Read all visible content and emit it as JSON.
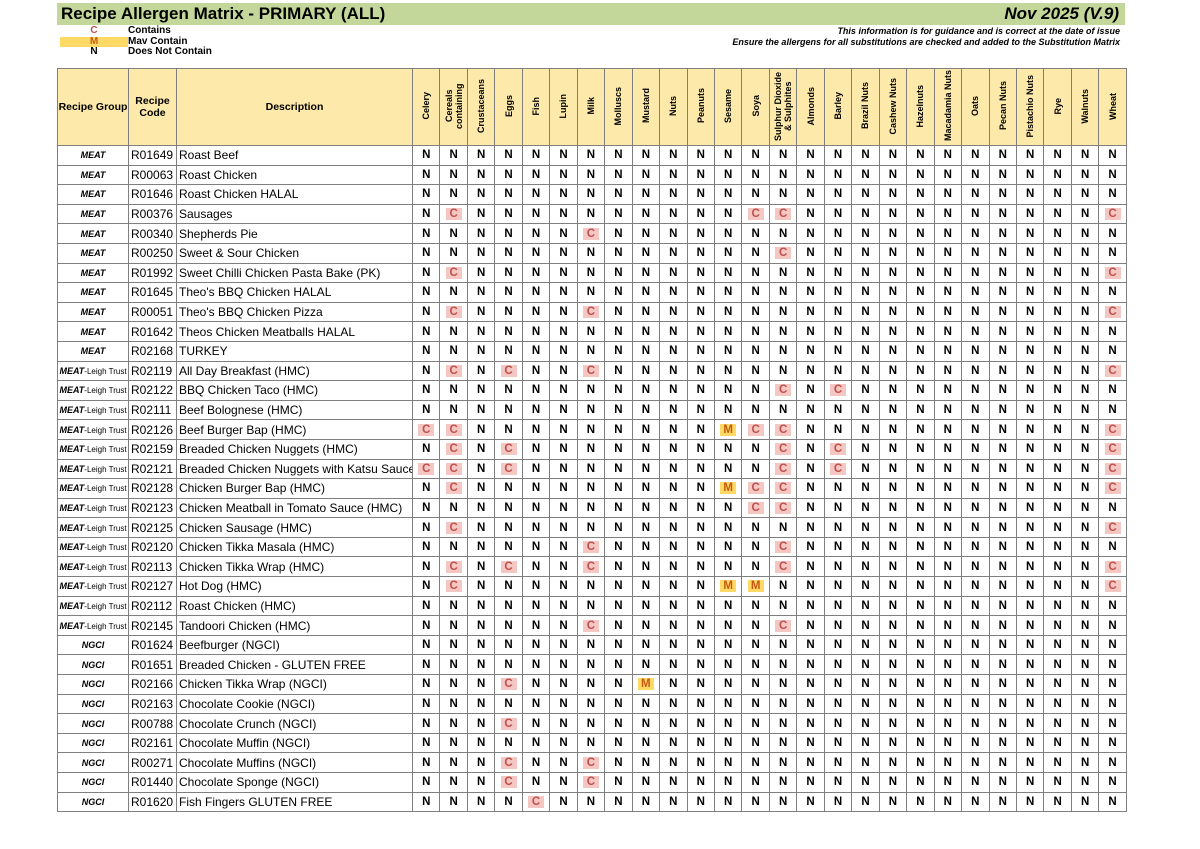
{
  "header": {
    "title": "Recipe Allergen Matrix - PRIMARY (ALL)",
    "date": "Nov 2025 (V.9)"
  },
  "legend": [
    {
      "code": "C",
      "label": "Contains"
    },
    {
      "code": "M",
      "label": "Mav Contain"
    },
    {
      "code": "N",
      "label": "Does Not Contain"
    }
  ],
  "notes": [
    "This information is for guidance and is correct at the date of issue",
    "Ensure the allergens for all substitutions are checked and added to the Substitution Matrix"
  ],
  "table": {
    "columns": [
      "Recipe Group",
      "Recipe Code",
      "Description"
    ],
    "allergens": [
      "Celery",
      "Cereals containing",
      "Crustaceans",
      "Eggs",
      "Fish",
      "Lupin",
      "Milk",
      "Molluscs",
      "Mustard",
      "Nuts",
      "Peanuts",
      "Sesame",
      "Soya",
      "Sulphur Dioxide & Sulphites",
      "Almonds",
      "Barley",
      "Brazil Nuts",
      "Cashew Nuts",
      "Hazelnuts",
      "Macadamia Nuts",
      "Oats",
      "Pecan Nuts",
      "Pistachio Nuts",
      "Rye",
      "Walnuts",
      "Wheat"
    ],
    "rows": [
      {
        "group": "MEAT",
        "code": "R01649",
        "description": "Roast Beef",
        "values": [
          "N",
          "N",
          "N",
          "N",
          "N",
          "N",
          "N",
          "N",
          "N",
          "N",
          "N",
          "N",
          "N",
          "N",
          "N",
          "N",
          "N",
          "N",
          "N",
          "N",
          "N",
          "N",
          "N",
          "N",
          "N",
          "N"
        ]
      },
      {
        "group": "MEAT",
        "code": "R00063",
        "description": "Roast Chicken",
        "values": [
          "N",
          "N",
          "N",
          "N",
          "N",
          "N",
          "N",
          "N",
          "N",
          "N",
          "N",
          "N",
          "N",
          "N",
          "N",
          "N",
          "N",
          "N",
          "N",
          "N",
          "N",
          "N",
          "N",
          "N",
          "N",
          "N"
        ]
      },
      {
        "group": "MEAT",
        "code": "R01646",
        "description": "Roast Chicken HALAL",
        "values": [
          "N",
          "N",
          "N",
          "N",
          "N",
          "N",
          "N",
          "N",
          "N",
          "N",
          "N",
          "N",
          "N",
          "N",
          "N",
          "N",
          "N",
          "N",
          "N",
          "N",
          "N",
          "N",
          "N",
          "N",
          "N",
          "N"
        ]
      },
      {
        "group": "MEAT",
        "code": "R00376",
        "description": "Sausages",
        "values": [
          "N",
          "C",
          "N",
          "N",
          "N",
          "N",
          "N",
          "N",
          "N",
          "N",
          "N",
          "N",
          "C",
          "C",
          "N",
          "N",
          "N",
          "N",
          "N",
          "N",
          "N",
          "N",
          "N",
          "N",
          "N",
          "C"
        ]
      },
      {
        "group": "MEAT",
        "code": "R00340",
        "description": "Shepherds Pie",
        "values": [
          "N",
          "N",
          "N",
          "N",
          "N",
          "N",
          "C",
          "N",
          "N",
          "N",
          "N",
          "N",
          "N",
          "N",
          "N",
          "N",
          "N",
          "N",
          "N",
          "N",
          "N",
          "N",
          "N",
          "N",
          "N",
          "N"
        ]
      },
      {
        "group": "MEAT",
        "code": "R00250",
        "description": "Sweet & Sour Chicken",
        "values": [
          "N",
          "N",
          "N",
          "N",
          "N",
          "N",
          "N",
          "N",
          "N",
          "N",
          "N",
          "N",
          "N",
          "C",
          "N",
          "N",
          "N",
          "N",
          "N",
          "N",
          "N",
          "N",
          "N",
          "N",
          "N",
          "N"
        ]
      },
      {
        "group": "MEAT",
        "code": "R01992",
        "description": "Sweet Chilli Chicken Pasta Bake (PK)",
        "values": [
          "N",
          "C",
          "N",
          "N",
          "N",
          "N",
          "N",
          "N",
          "N",
          "N",
          "N",
          "N",
          "N",
          "N",
          "N",
          "N",
          "N",
          "N",
          "N",
          "N",
          "N",
          "N",
          "N",
          "N",
          "N",
          "C"
        ]
      },
      {
        "group": "MEAT",
        "code": "R01645",
        "description": "Theo's BBQ Chicken HALAL",
        "values": [
          "N",
          "N",
          "N",
          "N",
          "N",
          "N",
          "N",
          "N",
          "N",
          "N",
          "N",
          "N",
          "N",
          "N",
          "N",
          "N",
          "N",
          "N",
          "N",
          "N",
          "N",
          "N",
          "N",
          "N",
          "N",
          "N"
        ]
      },
      {
        "group": "MEAT",
        "code": "R00051",
        "description": "Theo's BBQ Chicken Pizza",
        "values": [
          "N",
          "C",
          "N",
          "N",
          "N",
          "N",
          "C",
          "N",
          "N",
          "N",
          "N",
          "N",
          "N",
          "N",
          "N",
          "N",
          "N",
          "N",
          "N",
          "N",
          "N",
          "N",
          "N",
          "N",
          "N",
          "C"
        ]
      },
      {
        "group": "MEAT",
        "code": "R01642",
        "description": "Theos Chicken Meatballs HALAL",
        "values": [
          "N",
          "N",
          "N",
          "N",
          "N",
          "N",
          "N",
          "N",
          "N",
          "N",
          "N",
          "N",
          "N",
          "N",
          "N",
          "N",
          "N",
          "N",
          "N",
          "N",
          "N",
          "N",
          "N",
          "N",
          "N",
          "N"
        ]
      },
      {
        "group": "MEAT",
        "code": "R02168",
        "description": "TURKEY",
        "values": [
          "N",
          "N",
          "N",
          "N",
          "N",
          "N",
          "N",
          "N",
          "N",
          "N",
          "N",
          "N",
          "N",
          "N",
          "N",
          "N",
          "N",
          "N",
          "N",
          "N",
          "N",
          "N",
          "N",
          "N",
          "N",
          "N"
        ]
      },
      {
        "group": "MEAT",
        "sub": "-Leigh Trust",
        "code": "R02119",
        "description": "All Day Breakfast (HMC)",
        "values": [
          "N",
          "C",
          "N",
          "C",
          "N",
          "N",
          "C",
          "N",
          "N",
          "N",
          "N",
          "N",
          "N",
          "N",
          "N",
          "N",
          "N",
          "N",
          "N",
          "N",
          "N",
          "N",
          "N",
          "N",
          "N",
          "C"
        ]
      },
      {
        "group": "MEAT",
        "sub": "-Leigh Trust",
        "code": "R02122",
        "description": "BBQ Chicken Taco (HMC)",
        "values": [
          "N",
          "N",
          "N",
          "N",
          "N",
          "N",
          "N",
          "N",
          "N",
          "N",
          "N",
          "N",
          "N",
          "C",
          "N",
          "C",
          "N",
          "N",
          "N",
          "N",
          "N",
          "N",
          "N",
          "N",
          "N",
          "N"
        ]
      },
      {
        "group": "MEAT",
        "sub": "-Leigh Trust",
        "code": "R02111",
        "description": "Beef Bolognese (HMC)",
        "values": [
          "N",
          "N",
          "N",
          "N",
          "N",
          "N",
          "N",
          "N",
          "N",
          "N",
          "N",
          "N",
          "N",
          "N",
          "N",
          "N",
          "N",
          "N",
          "N",
          "N",
          "N",
          "N",
          "N",
          "N",
          "N",
          "N"
        ]
      },
      {
        "group": "MEAT",
        "sub": "-Leigh Trust",
        "code": "R02126",
        "description": "Beef Burger Bap (HMC)",
        "values": [
          "C",
          "C",
          "N",
          "N",
          "N",
          "N",
          "N",
          "N",
          "N",
          "N",
          "N",
          "M",
          "C",
          "C",
          "N",
          "N",
          "N",
          "N",
          "N",
          "N",
          "N",
          "N",
          "N",
          "N",
          "N",
          "C"
        ]
      },
      {
        "group": "MEAT",
        "sub": "-Leigh Trust",
        "code": "R02159",
        "description": "Breaded Chicken Nuggets (HMC)",
        "values": [
          "N",
          "C",
          "N",
          "C",
          "N",
          "N",
          "N",
          "N",
          "N",
          "N",
          "N",
          "N",
          "N",
          "C",
          "N",
          "C",
          "N",
          "N",
          "N",
          "N",
          "N",
          "N",
          "N",
          "N",
          "N",
          "C"
        ]
      },
      {
        "group": "MEAT",
        "sub": "-Leigh Trust",
        "code": "R02121",
        "description": "Breaded Chicken Nuggets with Katsu Sauce",
        "values": [
          "C",
          "C",
          "N",
          "C",
          "N",
          "N",
          "N",
          "N",
          "N",
          "N",
          "N",
          "N",
          "N",
          "C",
          "N",
          "C",
          "N",
          "N",
          "N",
          "N",
          "N",
          "N",
          "N",
          "N",
          "N",
          "C"
        ]
      },
      {
        "group": "MEAT",
        "sub": "-Leigh Trust",
        "code": "R02128",
        "description": "Chicken Burger Bap (HMC)",
        "values": [
          "N",
          "C",
          "N",
          "N",
          "N",
          "N",
          "N",
          "N",
          "N",
          "N",
          "N",
          "M",
          "C",
          "C",
          "N",
          "N",
          "N",
          "N",
          "N",
          "N",
          "N",
          "N",
          "N",
          "N",
          "N",
          "C"
        ]
      },
      {
        "group": "MEAT",
        "sub": "-Leigh Trust",
        "code": "R02123",
        "description": "Chicken Meatball in Tomato Sauce (HMC)",
        "values": [
          "N",
          "N",
          "N",
          "N",
          "N",
          "N",
          "N",
          "N",
          "N",
          "N",
          "N",
          "N",
          "C",
          "C",
          "N",
          "N",
          "N",
          "N",
          "N",
          "N",
          "N",
          "N",
          "N",
          "N",
          "N",
          "N"
        ]
      },
      {
        "group": "MEAT",
        "sub": "-Leigh Trust",
        "code": "R02125",
        "description": "Chicken Sausage (HMC)",
        "values": [
          "N",
          "C",
          "N",
          "N",
          "N",
          "N",
          "N",
          "N",
          "N",
          "N",
          "N",
          "N",
          "N",
          "N",
          "N",
          "N",
          "N",
          "N",
          "N",
          "N",
          "N",
          "N",
          "N",
          "N",
          "N",
          "C"
        ]
      },
      {
        "group": "MEAT",
        "sub": "-Leigh Trust",
        "code": "R02120",
        "description": "Chicken Tikka Masala (HMC)",
        "values": [
          "N",
          "N",
          "N",
          "N",
          "N",
          "N",
          "C",
          "N",
          "N",
          "N",
          "N",
          "N",
          "N",
          "C",
          "N",
          "N",
          "N",
          "N",
          "N",
          "N",
          "N",
          "N",
          "N",
          "N",
          "N",
          "N"
        ]
      },
      {
        "group": "MEAT",
        "sub": "-Leigh Trust",
        "code": "R02113",
        "description": "Chicken Tikka Wrap (HMC)",
        "values": [
          "N",
          "C",
          "N",
          "C",
          "N",
          "N",
          "C",
          "N",
          "N",
          "N",
          "N",
          "N",
          "N",
          "C",
          "N",
          "N",
          "N",
          "N",
          "N",
          "N",
          "N",
          "N",
          "N",
          "N",
          "N",
          "C"
        ]
      },
      {
        "group": "MEAT",
        "sub": "-Leigh Trust",
        "code": "R02127",
        "description": "Hot Dog (HMC)",
        "values": [
          "N",
          "C",
          "N",
          "N",
          "N",
          "N",
          "N",
          "N",
          "N",
          "N",
          "N",
          "M",
          "M",
          "N",
          "N",
          "N",
          "N",
          "N",
          "N",
          "N",
          "N",
          "N",
          "N",
          "N",
          "N",
          "C"
        ]
      },
      {
        "group": "MEAT",
        "sub": "-Leigh Trust",
        "code": "R02112",
        "description": "Roast Chicken (HMC)",
        "values": [
          "N",
          "N",
          "N",
          "N",
          "N",
          "N",
          "N",
          "N",
          "N",
          "N",
          "N",
          "N",
          "N",
          "N",
          "N",
          "N",
          "N",
          "N",
          "N",
          "N",
          "N",
          "N",
          "N",
          "N",
          "N",
          "N"
        ]
      },
      {
        "group": "MEAT",
        "sub": "-Leigh Trust",
        "code": "R02145",
        "description": "Tandoori Chicken (HMC)",
        "values": [
          "N",
          "N",
          "N",
          "N",
          "N",
          "N",
          "C",
          "N",
          "N",
          "N",
          "N",
          "N",
          "N",
          "C",
          "N",
          "N",
          "N",
          "N",
          "N",
          "N",
          "N",
          "N",
          "N",
          "N",
          "N",
          "N"
        ]
      },
      {
        "group": "NGCI",
        "code": "R01624",
        "description": "Beefburger (NGCI)",
        "values": [
          "N",
          "N",
          "N",
          "N",
          "N",
          "N",
          "N",
          "N",
          "N",
          "N",
          "N",
          "N",
          "N",
          "N",
          "N",
          "N",
          "N",
          "N",
          "N",
          "N",
          "N",
          "N",
          "N",
          "N",
          "N",
          "N"
        ]
      },
      {
        "group": "NGCI",
        "code": "R01651",
        "description": "Breaded Chicken - GLUTEN FREE",
        "values": [
          "N",
          "N",
          "N",
          "N",
          "N",
          "N",
          "N",
          "N",
          "N",
          "N",
          "N",
          "N",
          "N",
          "N",
          "N",
          "N",
          "N",
          "N",
          "N",
          "N",
          "N",
          "N",
          "N",
          "N",
          "N",
          "N"
        ]
      },
      {
        "group": "NGCI",
        "code": "R02166",
        "description": "Chicken Tikka Wrap (NGCI)",
        "values": [
          "N",
          "N",
          "N",
          "C",
          "N",
          "N",
          "N",
          "N",
          "M",
          "N",
          "N",
          "N",
          "N",
          "N",
          "N",
          "N",
          "N",
          "N",
          "N",
          "N",
          "N",
          "N",
          "N",
          "N",
          "N",
          "N"
        ]
      },
      {
        "group": "NGCI",
        "code": "R02163",
        "description": "Chocolate Cookie (NGCI)",
        "values": [
          "N",
          "N",
          "N",
          "N",
          "N",
          "N",
          "N",
          "N",
          "N",
          "N",
          "N",
          "N",
          "N",
          "N",
          "N",
          "N",
          "N",
          "N",
          "N",
          "N",
          "N",
          "N",
          "N",
          "N",
          "N",
          "N"
        ]
      },
      {
        "group": "NGCI",
        "code": "R00788",
        "description": "Chocolate Crunch (NGCI)",
        "values": [
          "N",
          "N",
          "N",
          "C",
          "N",
          "N",
          "N",
          "N",
          "N",
          "N",
          "N",
          "N",
          "N",
          "N",
          "N",
          "N",
          "N",
          "N",
          "N",
          "N",
          "N",
          "N",
          "N",
          "N",
          "N",
          "N"
        ]
      },
      {
        "group": "NGCI",
        "code": "R02161",
        "description": "Chocolate Muffin (NGCI)",
        "values": [
          "N",
          "N",
          "N",
          "N",
          "N",
          "N",
          "N",
          "N",
          "N",
          "N",
          "N",
          "N",
          "N",
          "N",
          "N",
          "N",
          "N",
          "N",
          "N",
          "N",
          "N",
          "N",
          "N",
          "N",
          "N",
          "N"
        ]
      },
      {
        "group": "NGCI",
        "code": "R00271",
        "description": "Chocolate Muffins (NGCI)",
        "values": [
          "N",
          "N",
          "N",
          "C",
          "N",
          "N",
          "C",
          "N",
          "N",
          "N",
          "N",
          "N",
          "N",
          "N",
          "N",
          "N",
          "N",
          "N",
          "N",
          "N",
          "N",
          "N",
          "N",
          "N",
          "N",
          "N"
        ]
      },
      {
        "group": "NGCI",
        "code": "R01440",
        "description": "Chocolate Sponge (NGCI)",
        "values": [
          "N",
          "N",
          "N",
          "C",
          "N",
          "N",
          "C",
          "N",
          "N",
          "N",
          "N",
          "N",
          "N",
          "N",
          "N",
          "N",
          "N",
          "N",
          "N",
          "N",
          "N",
          "N",
          "N",
          "N",
          "N",
          "N"
        ]
      },
      {
        "group": "NGCI",
        "code": "R01620",
        "description": "Fish Fingers GLUTEN FREE",
        "values": [
          "N",
          "N",
          "N",
          "N",
          "C",
          "N",
          "N",
          "N",
          "N",
          "N",
          "N",
          "N",
          "N",
          "N",
          "N",
          "N",
          "N",
          "N",
          "N",
          "N",
          "N",
          "N",
          "N",
          "N",
          "N",
          "N"
        ]
      }
    ]
  }
}
